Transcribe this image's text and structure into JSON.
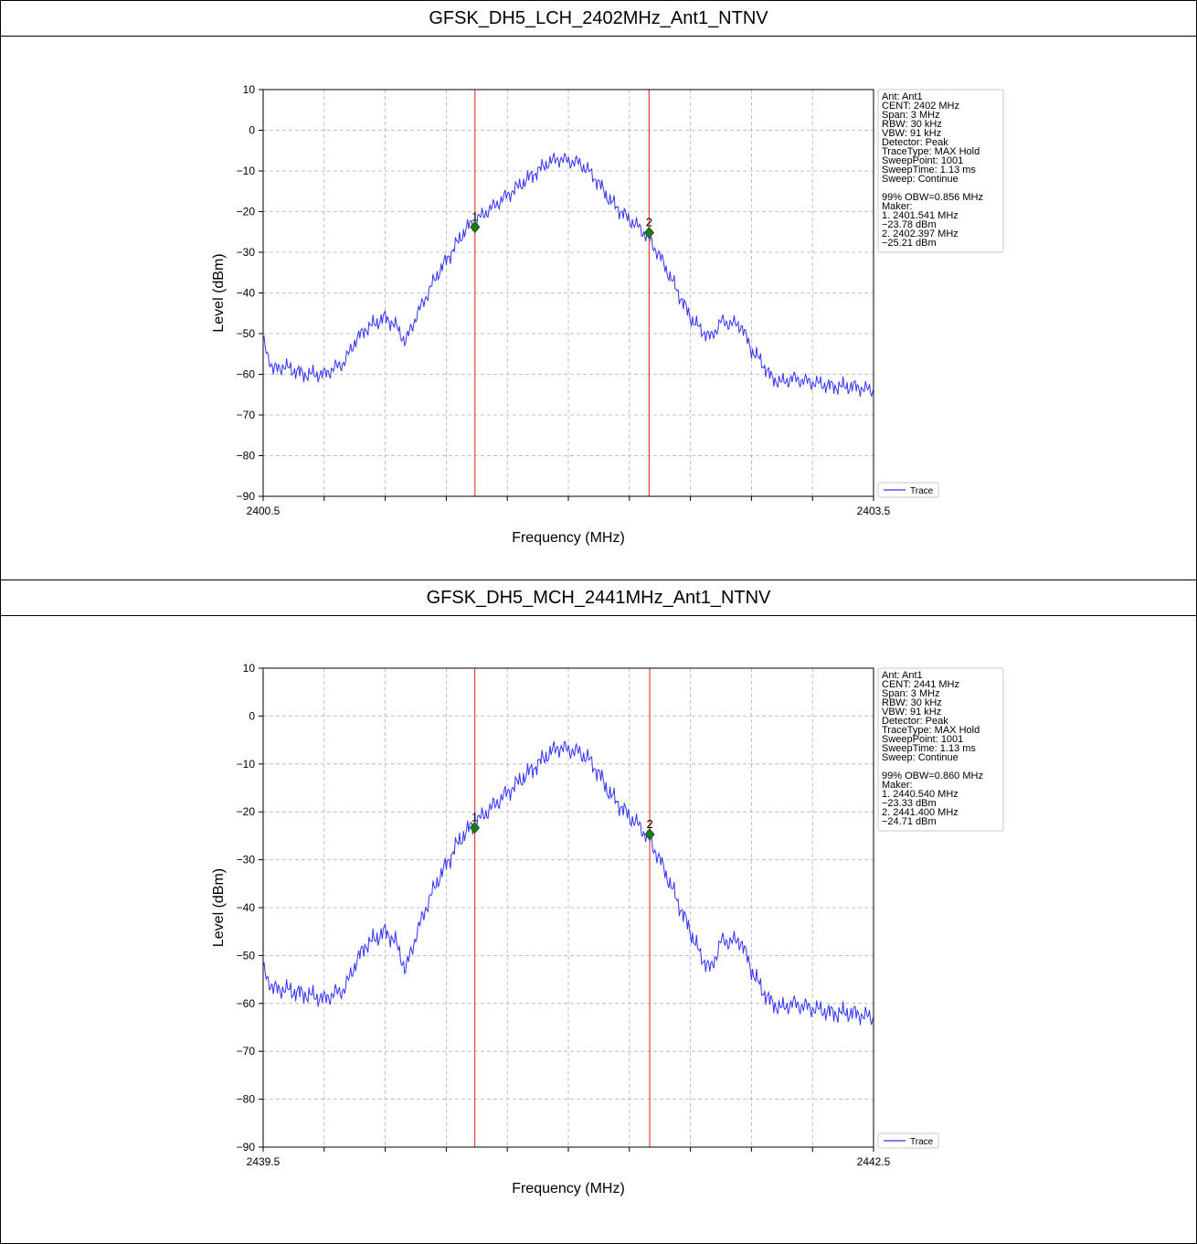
{
  "chart_data": [
    {
      "type": "line",
      "title": "GFSK_DH5_LCH_2402MHz_Ant1_NTNV",
      "xlabel": "Frequency (MHz)",
      "ylabel": "Level (dBm)",
      "xlim": [
        2400.5,
        2403.5
      ],
      "ylim": [
        -90,
        10
      ],
      "x_tick_labels": [
        "2400.5",
        "2403.5"
      ],
      "y_ticks": [
        10,
        0,
        -10,
        -20,
        -30,
        -40,
        -50,
        -60,
        -70,
        -80,
        -90
      ],
      "grid": true,
      "legend": {
        "entries": [
          "Trace"
        ],
        "position": "bottom-right outside"
      },
      "series": [
        {
          "name": "Trace",
          "color": "#3333ff",
          "x": [
            2400.5,
            2400.55,
            2400.6,
            2400.7,
            2400.8,
            2400.9,
            2400.95,
            2401.0,
            2401.1,
            2401.15,
            2401.2,
            2401.25,
            2401.3,
            2401.35,
            2401.4,
            2401.45,
            2401.5,
            2401.55,
            2401.6,
            2401.7,
            2401.8,
            2401.9,
            2401.95,
            2402.0,
            2402.05,
            2402.1,
            2402.15,
            2402.2,
            2402.3,
            2402.35,
            2402.4,
            2402.45,
            2402.5,
            2402.55,
            2402.6,
            2402.65,
            2402.7,
            2402.75,
            2402.85,
            2402.9,
            2402.95,
            2403.0,
            2403.05,
            2403.1,
            2403.2,
            2403.3,
            2403.4,
            2403.5
          ],
          "y": [
            -52,
            -59,
            -58,
            -60,
            -60,
            -57,
            -52,
            -49,
            -46,
            -48,
            -52,
            -46,
            -41,
            -36,
            -32,
            -28,
            -24,
            -22,
            -20,
            -16,
            -12,
            -8,
            -7,
            -7.5,
            -8,
            -10,
            -13,
            -17,
            -22,
            -24,
            -27,
            -31,
            -36,
            -41,
            -46,
            -49,
            -51,
            -47,
            -48,
            -54,
            -57,
            -61,
            -62,
            -61,
            -62,
            -63,
            -63,
            -64
          ]
        }
      ],
      "markers": [
        {
          "label": "1",
          "freq": 2401.541,
          "level": -23.78
        },
        {
          "label": "2",
          "freq": 2402.397,
          "level": -25.21
        }
      ],
      "info_box": [
        "Ant: Ant1",
        "CENT: 2402 MHz",
        "Span: 3 MHz",
        "RBW: 30 kHz",
        "VBW: 91 kHz",
        "Detector: Peak",
        "TraceType: MAX Hold",
        "SweepPoint: 1001",
        "SweepTime: 1.13 ms",
        "Sweep: Continue",
        "",
        "99% OBW=0.856 MHz",
        "Maker:",
        "1. 2401.541 MHz",
        "    -23.78 dBm",
        "2. 2402.397 MHz",
        "    -25.21 dBm"
      ]
    },
    {
      "type": "line",
      "title": "GFSK_DH5_MCH_2441MHz_Ant1_NTNV",
      "xlabel": "Frequency (MHz)",
      "ylabel": "Level (dBm)",
      "xlim": [
        2439.5,
        2442.5
      ],
      "ylim": [
        -90,
        10
      ],
      "x_tick_labels": [
        "2439.5",
        "2442.5"
      ],
      "y_ticks": [
        10,
        0,
        -10,
        -20,
        -30,
        -40,
        -50,
        -60,
        -70,
        -80,
        -90
      ],
      "grid": true,
      "legend": {
        "entries": [
          "Trace"
        ],
        "position": "bottom-right outside"
      },
      "series": [
        {
          "name": "Trace",
          "color": "#3333ff",
          "x": [
            2439.5,
            2439.55,
            2439.6,
            2439.7,
            2439.8,
            2439.9,
            2439.95,
            2440.0,
            2440.1,
            2440.15,
            2440.2,
            2440.25,
            2440.3,
            2440.35,
            2440.4,
            2440.45,
            2440.5,
            2440.55,
            2440.6,
            2440.7,
            2440.8,
            2440.9,
            2440.95,
            2441.0,
            2441.05,
            2441.1,
            2441.15,
            2441.2,
            2441.3,
            2441.35,
            2441.4,
            2441.45,
            2441.5,
            2441.55,
            2441.6,
            2441.65,
            2441.7,
            2441.75,
            2441.85,
            2441.9,
            2441.95,
            2442.0,
            2442.05,
            2442.1,
            2442.2,
            2442.3,
            2442.4,
            2442.5
          ],
          "y": [
            -53,
            -57,
            -57,
            -58,
            -59,
            -57,
            -52,
            -48,
            -45,
            -47,
            -53,
            -46,
            -40,
            -35,
            -31,
            -27,
            -24,
            -22,
            -20,
            -16,
            -12,
            -8,
            -6.5,
            -7,
            -7.5,
            -9,
            -12,
            -16,
            -21,
            -23,
            -26,
            -30,
            -35,
            -40,
            -45,
            -50,
            -53,
            -47,
            -47,
            -53,
            -57,
            -60,
            -61,
            -60,
            -61,
            -62,
            -62,
            -63
          ]
        }
      ],
      "markers": [
        {
          "label": "1",
          "freq": 2440.54,
          "level": -23.33
        },
        {
          "label": "2",
          "freq": 2441.4,
          "level": -24.71
        }
      ],
      "info_box": [
        "Ant: Ant1",
        "CENT: 2441 MHz",
        "Span: 3 MHz",
        "RBW: 30 kHz",
        "VBW: 91 kHz",
        "Detector: Peak",
        "TraceType: MAX Hold",
        "SweepPoint: 1001",
        "SweepTime: 1.13 ms",
        "Sweep: Continue",
        "",
        "99% OBW=0.860 MHz",
        "Maker:",
        "1. 2440.540 MHz",
        "    -23.33 dBm",
        "2. 2441.400 MHz",
        "    -24.71 dBm"
      ]
    }
  ],
  "colors": {
    "trace": "#3333ff",
    "marker_line": "#e8413c",
    "marker_point": "#1f7a1f",
    "grid": "#b0b0b0"
  }
}
